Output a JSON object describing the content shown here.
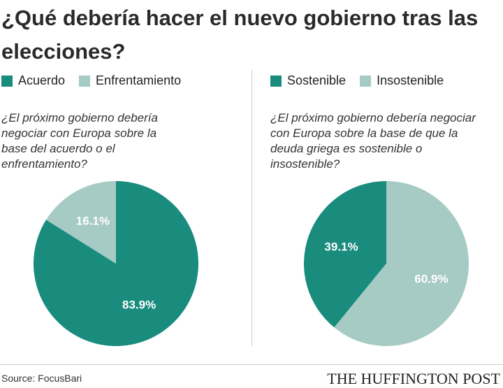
{
  "title": "¿Qué debería hacer el nuevo gobierno tras las elecciones?",
  "source": "Source: FocusBari",
  "brand": "THE HUFFINGTON POST",
  "chart_data": [
    {
      "type": "pie",
      "subtitle": "¿El próximo gobierno debería negociar con Europa sobre la base del acuerdo o el enfrentamiento?",
      "categories": [
        "Acuerdo",
        "Enfrentamiento"
      ],
      "values": [
        83.9,
        16.1
      ],
      "value_labels": [
        "83.9%",
        "16.1%"
      ],
      "colors": [
        "#198c7e",
        "#a6cac4"
      ],
      "clockwise": true
    },
    {
      "type": "pie",
      "subtitle": "¿El próximo gobierno debería negociar con Europa sobre la base de que la deuda griega es sostenible o insostenible?",
      "categories": [
        "Sostenible",
        "Insostenible"
      ],
      "values": [
        39.1,
        60.9
      ],
      "value_labels": [
        "39.1%",
        "60.9%"
      ],
      "colors": [
        "#198c7e",
        "#a6cac4"
      ],
      "clockwise": false
    }
  ]
}
